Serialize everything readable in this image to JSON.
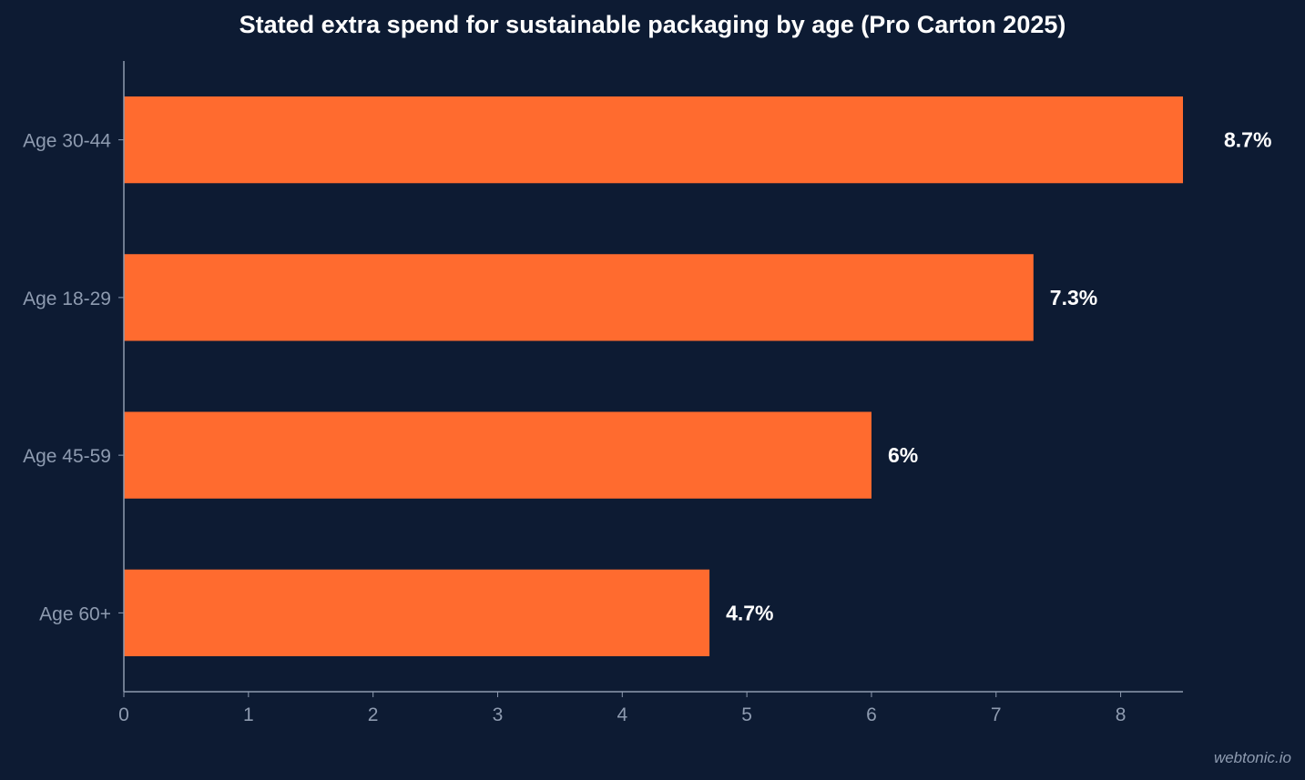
{
  "colors": {
    "background": "#0d1b33",
    "bar": "#ff6b2f",
    "axis": "#8e9bb0",
    "text": "#ffffff"
  },
  "watermark": "webtonic.io",
  "chart_data": {
    "type": "bar",
    "orientation": "horizontal",
    "title": "Stated extra spend for sustainable packaging by age (Pro Carton 2025)",
    "xlabel": "",
    "ylabel": "",
    "categories": [
      "Age 30-44",
      "Age 18-29",
      "Age 45-59",
      "Age 60+"
    ],
    "values": [
      8.7,
      7.3,
      6,
      4.7
    ],
    "data_labels": [
      "8.7%",
      "7.3%",
      "6%",
      "4.7%"
    ],
    "xlim": [
      0,
      8.5
    ],
    "xticks": [
      0,
      1,
      2,
      3,
      4,
      5,
      6,
      7,
      8
    ],
    "grid": false,
    "legend": "none"
  }
}
